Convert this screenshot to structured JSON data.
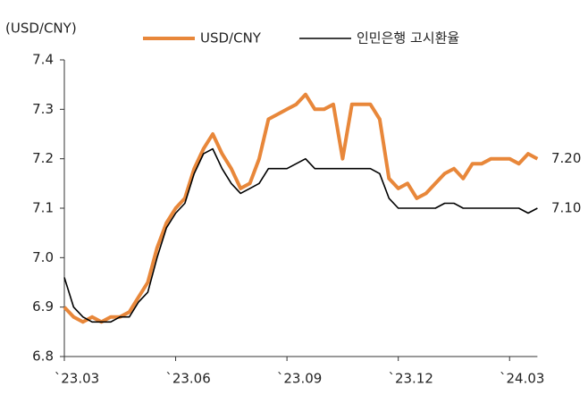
{
  "chart_data": {
    "type": "line",
    "y_axis_label": "(USD/CNY)",
    "categories": [
      "`23.03",
      null,
      null,
      null,
      null,
      null,
      null,
      null,
      null,
      null,
      null,
      null,
      "`23.06",
      null,
      null,
      null,
      null,
      null,
      null,
      null,
      null,
      null,
      null,
      null,
      "`23.09",
      null,
      null,
      null,
      null,
      null,
      null,
      null,
      null,
      null,
      null,
      null,
      "`23.12",
      null,
      null,
      null,
      null,
      null,
      null,
      null,
      null,
      null,
      null,
      null,
      "`24.03",
      null,
      null,
      null
    ],
    "series": [
      {
        "name": "USD/CNY",
        "color": "#e8873a",
        "values": [
          6.9,
          6.88,
          6.87,
          6.88,
          6.87,
          6.88,
          6.88,
          6.89,
          6.92,
          6.95,
          7.02,
          7.07,
          7.1,
          7.12,
          7.18,
          7.22,
          7.25,
          7.21,
          7.18,
          7.14,
          7.15,
          7.2,
          7.28,
          7.29,
          7.3,
          7.31,
          7.33,
          7.3,
          7.3,
          7.31,
          7.2,
          7.31,
          7.31,
          7.31,
          7.28,
          7.16,
          7.14,
          7.15,
          7.12,
          7.13,
          7.15,
          7.17,
          7.18,
          7.16,
          7.19,
          7.19,
          7.2,
          7.2,
          7.2,
          7.19,
          7.21,
          7.2
        ]
      },
      {
        "name": "인민은행 고시환율",
        "color": "#000000",
        "values": [
          6.96,
          6.9,
          6.88,
          6.87,
          6.87,
          6.87,
          6.88,
          6.88,
          6.91,
          6.93,
          7.0,
          7.06,
          7.09,
          7.11,
          7.17,
          7.21,
          7.22,
          7.18,
          7.15,
          7.13,
          7.14,
          7.15,
          7.18,
          7.18,
          7.18,
          7.19,
          7.2,
          7.18,
          7.18,
          7.18,
          7.18,
          7.18,
          7.18,
          7.18,
          7.17,
          7.12,
          7.1,
          7.1,
          7.1,
          7.1,
          7.1,
          7.11,
          7.11,
          7.1,
          7.1,
          7.1,
          7.1,
          7.1,
          7.1,
          7.1,
          7.09,
          7.1
        ]
      }
    ],
    "end_labels": [
      "7.20",
      "7.10"
    ],
    "ylim": [
      6.8,
      7.4
    ],
    "yticks": [
      6.8,
      6.9,
      {
        "value": 7,
        "label": "7.0"
      },
      7.1,
      7.2,
      7.3,
      7.4
    ],
    "grid": false
  }
}
